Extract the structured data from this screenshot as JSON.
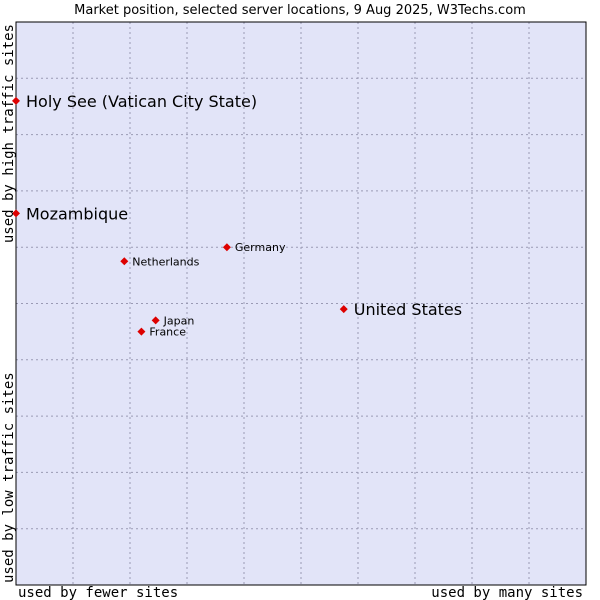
{
  "chart_data": {
    "type": "scatter",
    "title": "Market position, selected server locations, 9 Aug 2025, W3Techs.com",
    "xlabel_left": "used by fewer sites",
    "xlabel_right": "used by many sites",
    "ylabel_top": "used by high traffic sites",
    "ylabel_bottom": "used by low traffic sites",
    "xlim": [
      0,
      10
    ],
    "ylim": [
      0,
      10
    ],
    "grid": true,
    "points": [
      {
        "label": "Holy See (Vatican City State)",
        "x": 0.0,
        "y": 8.6,
        "emphasis": true
      },
      {
        "label": "Mozambique",
        "x": 0.0,
        "y": 6.6,
        "emphasis": true
      },
      {
        "label": "Germany",
        "x": 3.7,
        "y": 6.0,
        "emphasis": false
      },
      {
        "label": "Netherlands",
        "x": 1.9,
        "y": 5.75,
        "emphasis": false
      },
      {
        "label": "United States",
        "x": 5.75,
        "y": 4.9,
        "emphasis": true
      },
      {
        "label": "Japan",
        "x": 2.45,
        "y": 4.7,
        "emphasis": false
      },
      {
        "label": "France",
        "x": 2.2,
        "y": 4.5,
        "emphasis": false
      }
    ]
  },
  "colors": {
    "plot_background": "#e2e4f8",
    "grid": "#9a9ab4",
    "marker": "#dd0000",
    "border": "#000000"
  }
}
